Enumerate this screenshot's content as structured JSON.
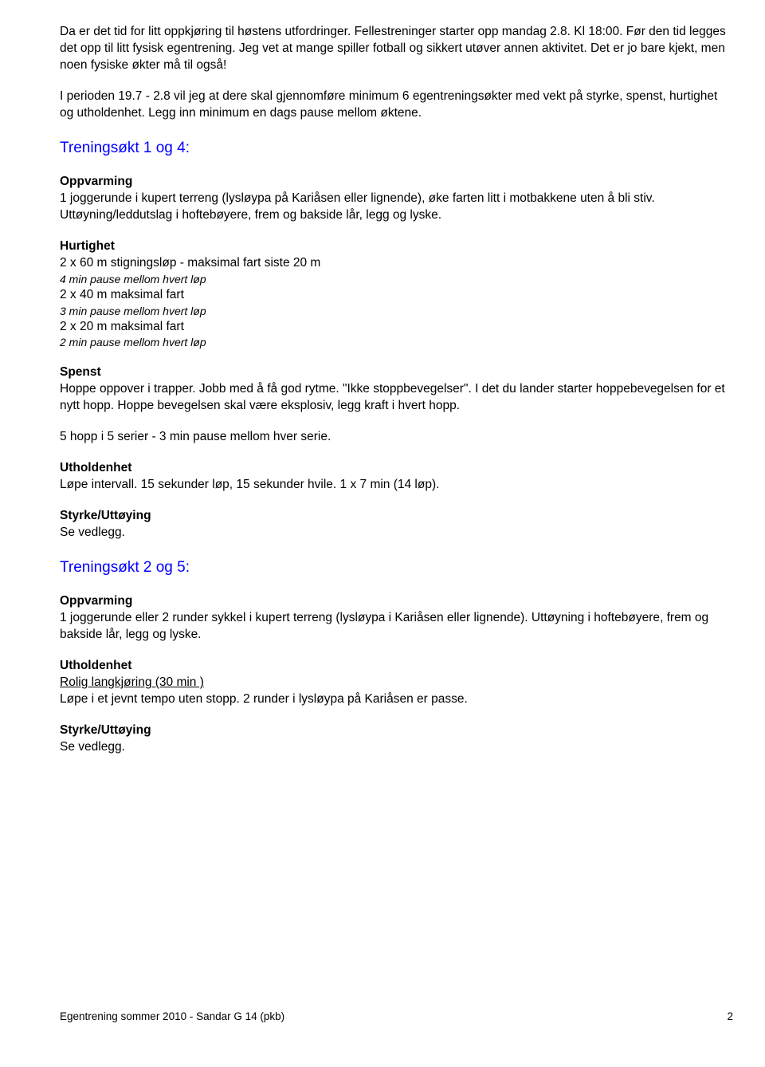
{
  "intro": {
    "p1": "Da er det tid for litt oppkjøring til høstens utfordringer. Fellestreninger starter opp mandag 2.8. Kl 18:00. Før den tid legges det opp til litt fysisk egentrening. Jeg vet at mange spiller fotball og sikkert utøver annen aktivitet. Det er jo bare kjekt, men noen fysiske økter må til også!",
    "p2": "I perioden 19.7 - 2.8 vil jeg at dere skal gjennomføre minimum 6 egentreningsøkter med vekt på styrke, spenst, hurtighet og utholdenhet. Legg inn minimum en dags pause mellom øktene."
  },
  "session14": {
    "title": "Treningsøkt 1 og 4:",
    "warmup_heading": "Oppvarming",
    "warmup_text": "1 joggerunde i kupert terreng (lysløypa på Kariåsen eller lignende), øke farten litt i motbakkene uten å bli stiv. Uttøyning/leddutslag i hoftebøyere, frem og bakside lår, legg og lyske.",
    "speed_heading": "Hurtighet",
    "speed_l1": "2 x 60 m stigningsløp - maksimal fart siste 20 m",
    "speed_l2": "4 min pause mellom hvert løp",
    "speed_l3": "2 x 40 m maksimal fart",
    "speed_l4": "3 min pause mellom hvert løp",
    "speed_l5": "2 x 20 m maksimal fart",
    "speed_l6": "2 min pause mellom hvert løp",
    "spenst_heading": "Spenst",
    "spenst_text": "Hoppe oppover i trapper. Jobb med å få god rytme. \"Ikke stoppbevegelser\". I det du lander starter hoppebevegelsen for et nytt hopp. Hoppe bevegelsen skal være eksplosiv, legg kraft i hvert hopp.",
    "spenst_sets": "5 hopp i 5 serier - 3 min pause mellom hver serie.",
    "uth_heading": "Utholdenhet",
    "uth_text": "Løpe intervall. 15 sekunder løp, 15 sekunder hvile. 1 x 7 min (14 løp).",
    "style_heading": "Styrke/Uttøying",
    "style_text": "Se vedlegg."
  },
  "session25": {
    "title": "Treningsøkt 2 og 5:",
    "warmup_heading": "Oppvarming",
    "warmup_text": "1 joggerunde eller 2 runder sykkel i kupert terreng (lysløypa i Kariåsen eller lignende). Uttøyning i hoftebøyere, frem og bakside lår, legg og lyske.",
    "uth_heading": "Utholdenhet",
    "uth_line1": "Rolig langkjøring (30 min )",
    "uth_line2": "Løpe i et jevnt tempo uten stopp. 2 runder i lysløypa på Kariåsen er passe.",
    "style_heading": "Styrke/Uttøying",
    "style_text": "Se vedlegg."
  },
  "footer": {
    "text": "Egentrening sommer 2010  - Sandar G 14 (pkb)",
    "page": "2"
  }
}
